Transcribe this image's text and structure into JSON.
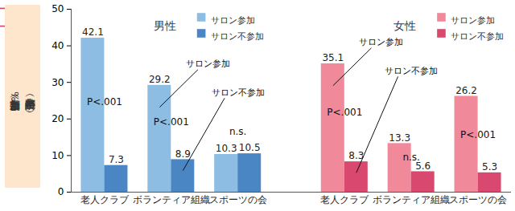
{
  "chart_data": [
    {
      "type": "bar",
      "title": "男性",
      "ylabel": "新規参加割合（%）\n（年齢調整済み）",
      "categories": [
        "老人クラブ",
        "ボランティア組織",
        "スポーツの会"
      ],
      "series": [
        {
          "name": "サロン参加",
          "color": "#8dbde3",
          "values": [
            42.1,
            29.2,
            10.3
          ]
        },
        {
          "name": "サロン不参加",
          "color": "#4a85c4",
          "values": [
            7.3,
            8.9,
            10.5
          ]
        }
      ],
      "ylim": [
        0,
        50
      ],
      "yticks": [
        0,
        10,
        20,
        30,
        40,
        50
      ],
      "data_labels": true,
      "legend": "top-right",
      "annotations": [
        {
          "category": "老人クラブ",
          "text": "P<.001"
        },
        {
          "category": "ボランティア組織",
          "text": "P<.001"
        },
        {
          "category": "スポーツの会",
          "text": "n.s."
        }
      ],
      "callouts": [
        {
          "category": "ボランティア組織",
          "series": "サロン参加",
          "text": "サロン参加"
        },
        {
          "category": "ボランティア組織",
          "series": "サロン不参加",
          "text": "サロン不参加"
        }
      ]
    },
    {
      "type": "bar",
      "title": "女性",
      "categories": [
        "老人クラブ",
        "ボランティア組織",
        "スポーツの会"
      ],
      "series": [
        {
          "name": "サロン参加",
          "color": "#f08a9b",
          "values": [
            35.1,
            13.3,
            26.2
          ]
        },
        {
          "name": "サロン不参加",
          "color": "#d9486e",
          "values": [
            8.3,
            5.6,
            5.3
          ]
        }
      ],
      "ylim": [
        0,
        50
      ],
      "yticks": [
        0,
        10,
        20,
        30,
        40,
        50
      ],
      "tick_labels": "x",
      "data_labels": true,
      "legend": "top-right",
      "annotations": [
        {
          "category": "老人クラブ",
          "text": "P<.001"
        },
        {
          "category": "ボランティア組織",
          "text": "n.s."
        },
        {
          "category": "スポーツの会",
          "text": "P<.001"
        }
      ],
      "callouts": [
        {
          "category": "老人クラブ",
          "series": "サロン参加",
          "text": "サロン参加"
        },
        {
          "category": "老人クラブ",
          "series": "サロン不参加",
          "text": "サロン不参加"
        }
      ]
    }
  ]
}
